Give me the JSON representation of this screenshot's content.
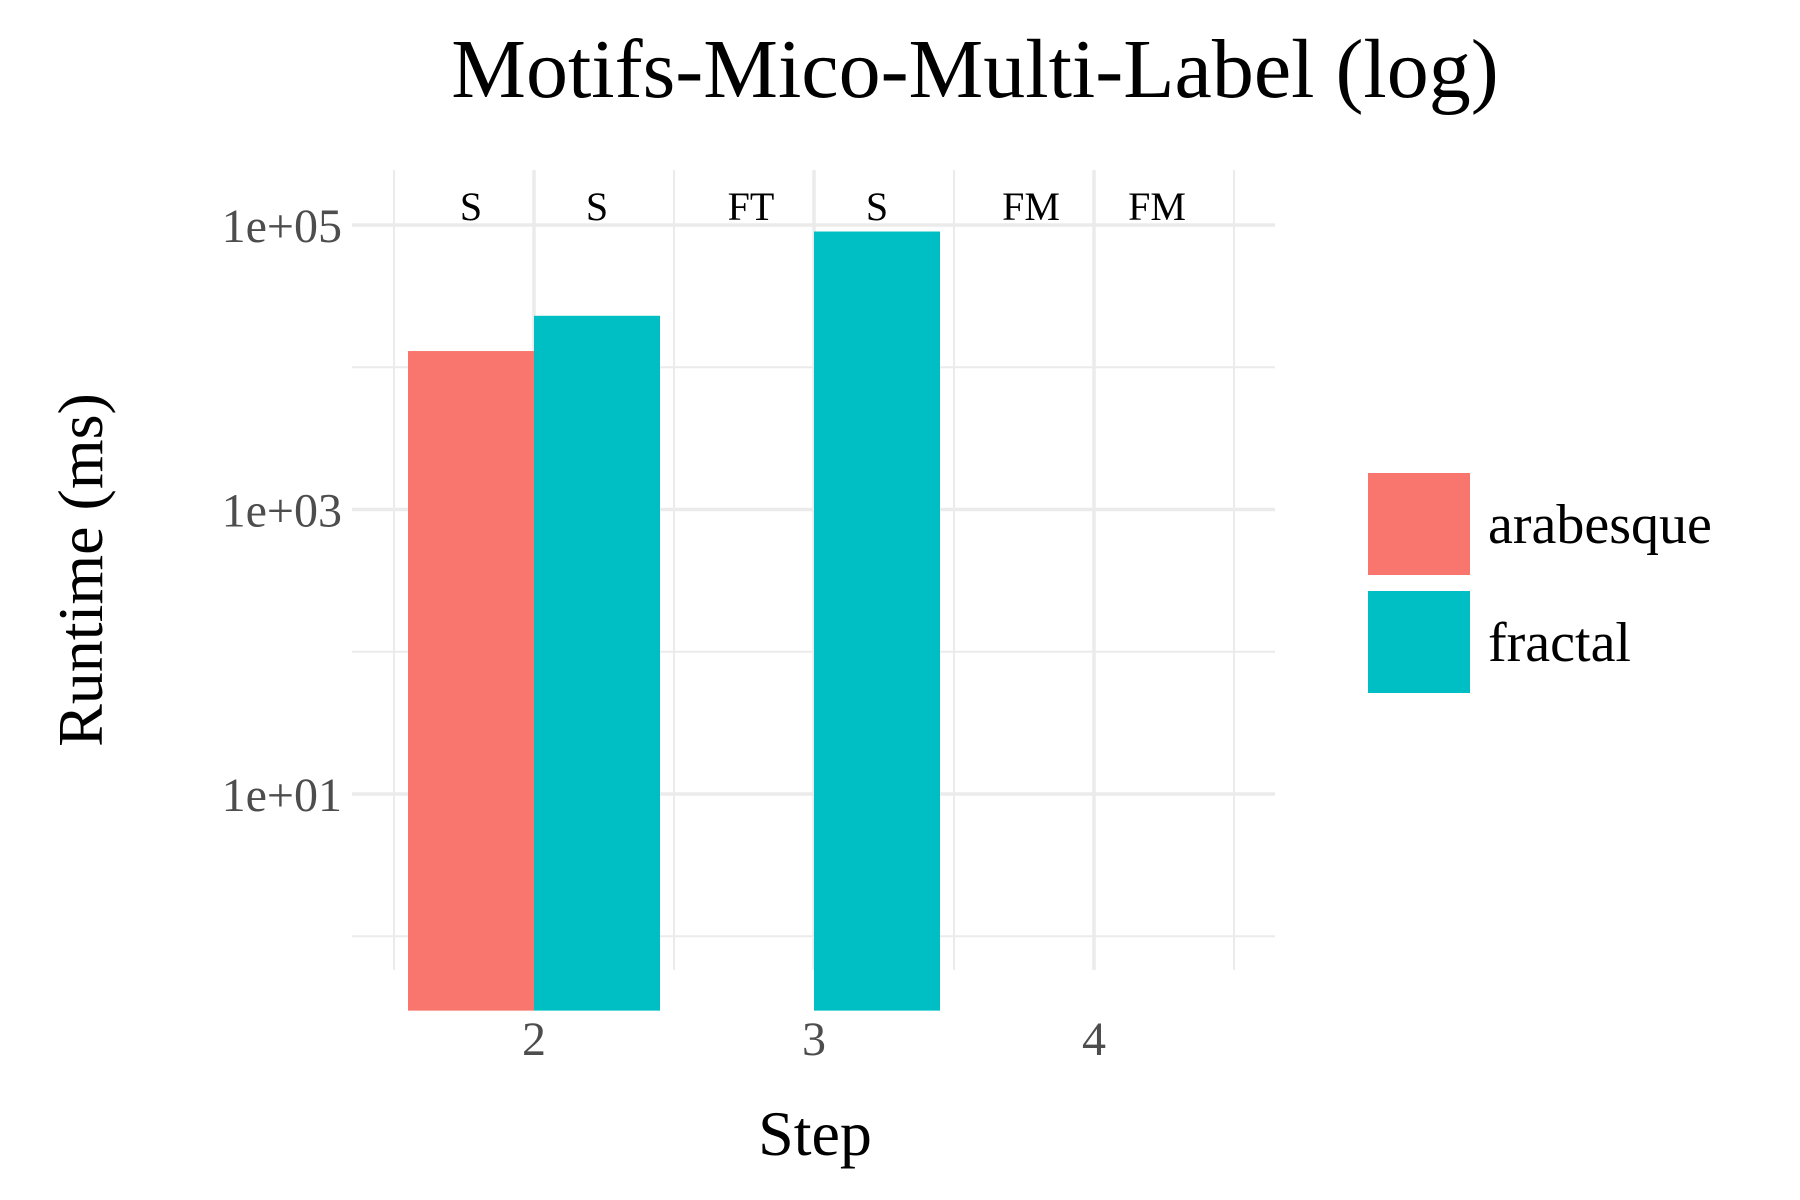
{
  "chart_data": {
    "type": "bar",
    "title": "Motifs-Mico-Multi-Label (log)",
    "xlabel": "Step",
    "ylabel": "Runtime (ms)",
    "y_scale": "log10",
    "ylim": [
      0.3,
      200000
    ],
    "y_ticks": [
      10,
      1000,
      100000
    ],
    "y_tick_labels": [
      "1e+01",
      "1e+03",
      "1e+05"
    ],
    "categories": [
      "2",
      "3",
      "4"
    ],
    "series": [
      {
        "name": "arabesque",
        "color": "#F8766D",
        "values": [
          13000,
          null,
          null
        ]
      },
      {
        "name": "fractal",
        "color": "#00BFC4",
        "values": [
          23000,
          90000,
          null
        ]
      }
    ],
    "status_labels": [
      {
        "category": "2",
        "series": "arabesque",
        "text": "S"
      },
      {
        "category": "2",
        "series": "fractal",
        "text": "S"
      },
      {
        "category": "3",
        "series": "arabesque",
        "text": "FT"
      },
      {
        "category": "3",
        "series": "fractal",
        "text": "S"
      },
      {
        "category": "4",
        "series": "arabesque",
        "text": "FM"
      },
      {
        "category": "4",
        "series": "fractal",
        "text": "FM"
      }
    ],
    "grid": true,
    "legend_position": "right"
  }
}
